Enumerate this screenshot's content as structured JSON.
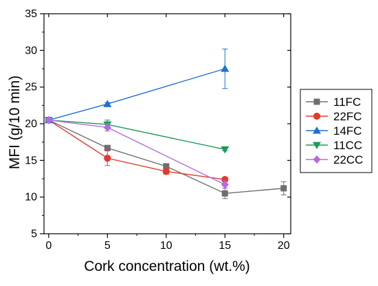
{
  "chart_data": {
    "type": "line",
    "title": "",
    "xlabel": "Cork concentration (wt.%)",
    "ylabel": "MFI (g/10 min)",
    "xlim": [
      -0.4,
      20.6
    ],
    "ylim": [
      5,
      35
    ],
    "xticks": [
      0,
      5,
      10,
      15,
      20
    ],
    "yticks": [
      5,
      10,
      15,
      20,
      25,
      30,
      35
    ],
    "grid": false,
    "legend_position": "right",
    "series": [
      {
        "name": "11FC",
        "color": "#6e6e6e",
        "marker": "square",
        "x": [
          0,
          5,
          10,
          15,
          20
        ],
        "y": [
          20.5,
          16.7,
          14.2,
          10.5,
          11.2
        ],
        "err": [
          0.2,
          0.3,
          0.3,
          0.7,
          0.9
        ]
      },
      {
        "name": "22FC",
        "color": "#e23a2e",
        "marker": "circle",
        "x": [
          0,
          5,
          10,
          15
        ],
        "y": [
          20.5,
          15.3,
          13.5,
          12.4
        ],
        "err": [
          0.2,
          1.0,
          0.4,
          0.3
        ]
      },
      {
        "name": "14FC",
        "color": "#1f6fd1",
        "marker": "triangle-up",
        "x": [
          0,
          5,
          15
        ],
        "y": [
          20.5,
          22.7,
          27.5
        ],
        "err": [
          0.2,
          0.2,
          2.7
        ]
      },
      {
        "name": "11CC",
        "color": "#1c9b5a",
        "marker": "triangle-down",
        "x": [
          0,
          5,
          15
        ],
        "y": [
          20.5,
          19.9,
          16.5
        ],
        "err": [
          0.2,
          0.6,
          0.2
        ]
      },
      {
        "name": "22CC",
        "color": "#b36ae2",
        "marker": "diamond",
        "x": [
          0,
          5,
          15
        ],
        "y": [
          20.5,
          19.5,
          11.7
        ],
        "err": [
          0.2,
          0.5,
          0.5
        ]
      }
    ]
  }
}
